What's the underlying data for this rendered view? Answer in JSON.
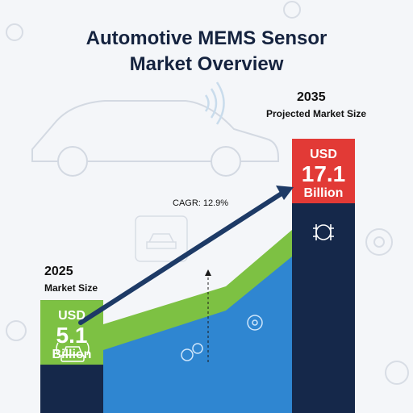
{
  "chart_data": {
    "type": "bar",
    "title_lines": [
      "Automotive MEMS Sensor",
      "Market Overview"
    ],
    "categories": [
      "2025",
      "2035"
    ],
    "values": [
      5.1,
      17.1
    ],
    "units": "USD Billion",
    "start": {
      "year": "2025",
      "label": "Market Size",
      "currency": "USD",
      "value": "5.1",
      "unit": "Billion",
      "color": "#7dc143"
    },
    "end": {
      "year": "2035",
      "label": "Projected Market Size",
      "currency": "USD",
      "value": "17.1",
      "unit": "Billion",
      "color": "#e23a36"
    },
    "annotation": "CAGR: 12.9%",
    "colors": {
      "bar": "#15284a",
      "area_top": "#7dc143",
      "area_bottom": "#2f86d1",
      "arrow": "#1d3a66"
    }
  },
  "icons": [
    "car-outline-icon",
    "wireless-signal-icon",
    "chip-car-icon",
    "gear-icon",
    "car-front-icon",
    "sensor-chip-icon"
  ]
}
